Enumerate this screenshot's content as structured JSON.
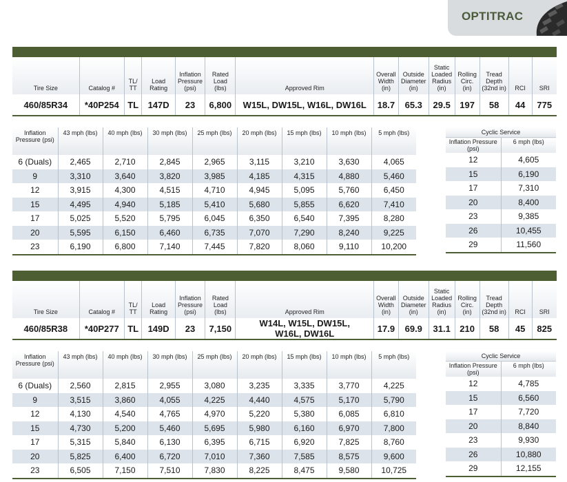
{
  "brand": {
    "name": "OPTITRAC",
    "tread_icon": "tire-tread-icon",
    "accent": "#4e5e33",
    "alt_row": "#dde3ea"
  },
  "spec_headers": [
    "Tire Size",
    "Catalog #",
    "TL/ TT",
    "Load Rating",
    "Inflation Pressure (psi)",
    "Rated Load (lbs)",
    "Approved Rim",
    "Overall Width (in)",
    "Outside Diameter (in)",
    "Static Loaded Radius (in)",
    "Rolling Circ. (in)",
    "Tread Depth (32nd in)",
    "RCI",
    "SRI"
  ],
  "load_headers": [
    "Inflation Pressure (psi)",
    "43 mph (lbs)",
    "40 mph (lbs)",
    "30 mph (lbs)",
    "25 mph (lbs)",
    "20 mph (lbs)",
    "15 mph (lbs)",
    "10 mph (lbs)",
    "5 mph (lbs)"
  ],
  "cyclic_headers": {
    "title": "Cyclic Service",
    "pressure": "Inflation Pressure (psi)",
    "speed": "6 mph (lbs)"
  },
  "tires": [
    {
      "spec": {
        "tire_size": "460/85R34",
        "catalog": "*40P254",
        "tl_tt": "TL",
        "load_rating": "147D",
        "inflation": "23",
        "rated_load": "6,800",
        "rim_line1": "W15L, DW15L, W16L, DW16L",
        "rim_line2": "",
        "width": "18.7",
        "diameter": "65.3",
        "radius": "29.5",
        "circ": "197",
        "tread": "58",
        "rci": "44",
        "sri": "775"
      },
      "load_rows": [
        [
          "6 (Duals)",
          "2,465",
          "2,710",
          "2,845",
          "2,965",
          "3,115",
          "3,210",
          "3,630",
          "4,065"
        ],
        [
          "9",
          "3,310",
          "3,640",
          "3,820",
          "3,985",
          "4,185",
          "4,315",
          "4,880",
          "5,460"
        ],
        [
          "12",
          "3,915",
          "4,300",
          "4,515",
          "4,710",
          "4,945",
          "5,095",
          "5,760",
          "6,450"
        ],
        [
          "15",
          "4,495",
          "4,940",
          "5,185",
          "5,410",
          "5,680",
          "5,855",
          "6,620",
          "7,410"
        ],
        [
          "17",
          "5,025",
          "5,520",
          "5,795",
          "6,045",
          "6,350",
          "6,540",
          "7,395",
          "8,280"
        ],
        [
          "20",
          "5,595",
          "6,150",
          "6,460",
          "6,735",
          "7,070",
          "7,290",
          "8,240",
          "9,225"
        ],
        [
          "23",
          "6,190",
          "6,800",
          "7,140",
          "7,445",
          "7,820",
          "8,060",
          "9,110",
          "10,200"
        ]
      ],
      "cyclic_rows": [
        [
          "12",
          "4,605"
        ],
        [
          "15",
          "6,190"
        ],
        [
          "17",
          "7,310"
        ],
        [
          "20",
          "8,400"
        ],
        [
          "23",
          "9,385"
        ],
        [
          "26",
          "10,455"
        ],
        [
          "29",
          "11,560"
        ]
      ]
    },
    {
      "spec": {
        "tire_size": "460/85R38",
        "catalog": "*40P277",
        "tl_tt": "TL",
        "load_rating": "149D",
        "inflation": "23",
        "rated_load": "7,150",
        "rim_line1": "W14L, W15L, DW15L,",
        "rim_line2": "W16L, DW16L",
        "width": "17.9",
        "diameter": "69.9",
        "radius": "31.1",
        "circ": "210",
        "tread": "58",
        "rci": "45",
        "sri": "825"
      },
      "load_rows": [
        [
          "6 (Duals)",
          "2,560",
          "2,815",
          "2,955",
          "3,080",
          "3,235",
          "3,335",
          "3,770",
          "4,225"
        ],
        [
          "9",
          "3,515",
          "3,860",
          "4,055",
          "4,225",
          "4,440",
          "4,575",
          "5,170",
          "5,790"
        ],
        [
          "12",
          "4,130",
          "4,540",
          "4,765",
          "4,970",
          "5,220",
          "5,380",
          "6,085",
          "6,810"
        ],
        [
          "15",
          "4,730",
          "5,200",
          "5,460",
          "5,695",
          "5,980",
          "6,160",
          "6,970",
          "7,800"
        ],
        [
          "17",
          "5,315",
          "5,840",
          "6,130",
          "6,395",
          "6,715",
          "6,920",
          "7,825",
          "8,760"
        ],
        [
          "20",
          "5,825",
          "6,400",
          "6,720",
          "7,010",
          "7,360",
          "7,585",
          "8,575",
          "9,600"
        ],
        [
          "23",
          "6,505",
          "7,150",
          "7,510",
          "7,830",
          "8,225",
          "8,475",
          "9,580",
          "10,725"
        ]
      ],
      "cyclic_rows": [
        [
          "12",
          "4,785"
        ],
        [
          "15",
          "6,560"
        ],
        [
          "17",
          "7,720"
        ],
        [
          "20",
          "8,840"
        ],
        [
          "23",
          "9,930"
        ],
        [
          "26",
          "10,880"
        ],
        [
          "29",
          "12,155"
        ]
      ]
    }
  ]
}
